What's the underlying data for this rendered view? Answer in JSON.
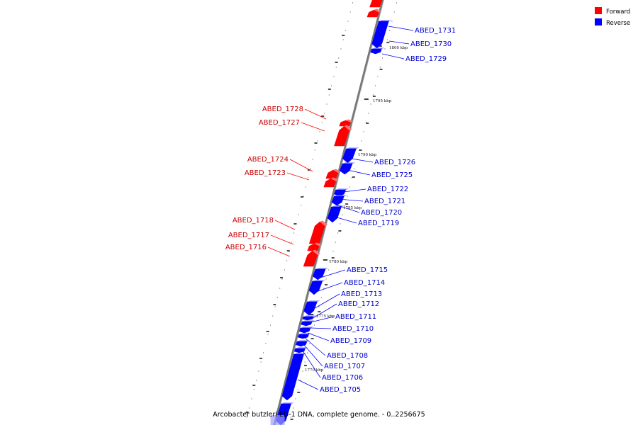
{
  "legend": {
    "forward_label": "Forward",
    "reverse_label": "Reverse",
    "forward_color": "#ff0000",
    "reverse_color": "#0000ff"
  },
  "caption": "Arcobacter butzleri ED-1 DNA, complete genome. - 0..2256675",
  "scale_labels": [
    "1800 kbp",
    "1795 kbp",
    "1790 kbp",
    "1785 kbp",
    "1780 kbp",
    "1775 kbp",
    "1770 kbp"
  ],
  "genes": [
    {
      "name": "ABED_1731",
      "strand": "reverse"
    },
    {
      "name": "ABED_1730",
      "strand": "reverse"
    },
    {
      "name": "ABED_1729",
      "strand": "reverse"
    },
    {
      "name": "ABED_1728",
      "strand": "forward"
    },
    {
      "name": "ABED_1727",
      "strand": "forward"
    },
    {
      "name": "ABED_1726",
      "strand": "reverse"
    },
    {
      "name": "ABED_1725",
      "strand": "reverse"
    },
    {
      "name": "ABED_1724",
      "strand": "forward"
    },
    {
      "name": "ABED_1723",
      "strand": "forward"
    },
    {
      "name": "ABED_1722",
      "strand": "reverse"
    },
    {
      "name": "ABED_1721",
      "strand": "reverse"
    },
    {
      "name": "ABED_1720",
      "strand": "reverse"
    },
    {
      "name": "ABED_1719",
      "strand": "reverse"
    },
    {
      "name": "ABED_1718",
      "strand": "forward"
    },
    {
      "name": "ABED_1717",
      "strand": "forward"
    },
    {
      "name": "ABED_1716",
      "strand": "forward"
    },
    {
      "name": "ABED_1715",
      "strand": "reverse"
    },
    {
      "name": "ABED_1714",
      "strand": "reverse"
    },
    {
      "name": "ABED_1713",
      "strand": "reverse"
    },
    {
      "name": "ABED_1712",
      "strand": "reverse"
    },
    {
      "name": "ABED_1711",
      "strand": "reverse"
    },
    {
      "name": "ABED_1710",
      "strand": "reverse"
    },
    {
      "name": "ABED_1709",
      "strand": "reverse"
    },
    {
      "name": "ABED_1708",
      "strand": "reverse"
    },
    {
      "name": "ABED_1707",
      "strand": "reverse"
    },
    {
      "name": "ABED_1706",
      "strand": "reverse"
    },
    {
      "name": "ABED_1705",
      "strand": "reverse"
    }
  ]
}
